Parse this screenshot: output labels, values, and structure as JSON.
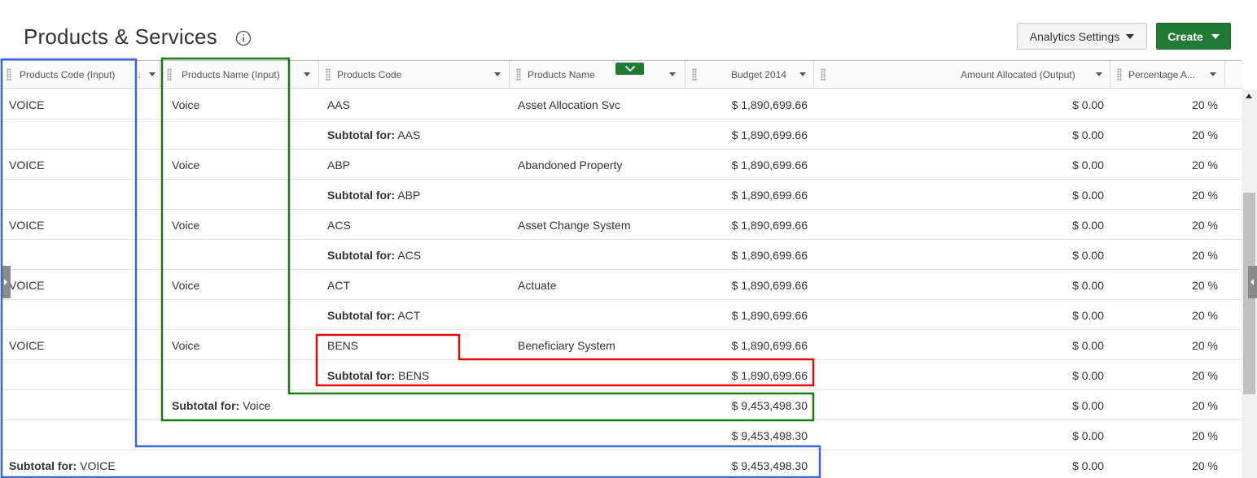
{
  "page": {
    "title": "Products & Services",
    "analytics_label": "Analytics Settings",
    "create_label": "Create"
  },
  "columns": [
    {
      "label": "Products Code (Input)"
    },
    {
      "label": "Products Name (Input)"
    },
    {
      "label": "Products Code"
    },
    {
      "label": "Products Name"
    },
    {
      "label": "Budget 2014"
    },
    {
      "label": "Amount Allocated (Output)"
    },
    {
      "label": "Percentage A..."
    }
  ],
  "subtotal_prefix": "Subtotal for:",
  "rows": [
    {
      "pci": "VOICE",
      "pni": "Voice",
      "pc": "AAS",
      "pn": "Asset Allocation Svc",
      "budget": "$ 1,890,699.66",
      "alloc": "$ 0.00",
      "pct": "20 %"
    },
    {
      "pci": "",
      "pni": "",
      "sub3": "AAS",
      "budget": "$ 1,890,699.66",
      "alloc": "$ 0.00",
      "pct": "20 %"
    },
    {
      "pci": "VOICE",
      "pni": "Voice",
      "pc": "ABP",
      "pn": "Abandoned Property",
      "budget": "$ 1,890,699.66",
      "alloc": "$ 0.00",
      "pct": "20 %"
    },
    {
      "pci": "",
      "pni": "",
      "sub3": "ABP",
      "budget": "$ 1,890,699.66",
      "alloc": "$ 0.00",
      "pct": "20 %"
    },
    {
      "pci": "VOICE",
      "pni": "Voice",
      "pc": "ACS",
      "pn": "Asset Change System",
      "budget": "$ 1,890,699.66",
      "alloc": "$ 0.00",
      "pct": "20 %"
    },
    {
      "pci": "",
      "pni": "",
      "sub3": "ACS",
      "budget": "$ 1,890,699.66",
      "alloc": "$ 0.00",
      "pct": "20 %"
    },
    {
      "pci": "VOICE",
      "pni": "Voice",
      "pc": "ACT",
      "pn": "Actuate",
      "budget": "$ 1,890,699.66",
      "alloc": "$ 0.00",
      "pct": "20 %"
    },
    {
      "pci": "",
      "pni": "",
      "sub3": "ACT",
      "budget": "$ 1,890,699.66",
      "alloc": "$ 0.00",
      "pct": "20 %"
    },
    {
      "pci": "VOICE",
      "pni": "Voice",
      "pc": "BENS",
      "pn": "Beneficiary System",
      "budget": "$ 1,890,699.66",
      "alloc": "$ 0.00",
      "pct": "20 %"
    },
    {
      "pci": "",
      "pni": "",
      "sub3": "BENS",
      "budget": "$ 1,890,699.66",
      "alloc": "$ 0.00",
      "pct": "20 %"
    },
    {
      "pci": "",
      "sub2": "Voice",
      "budget": "$ 9,453,498.30",
      "alloc": "$ 0.00",
      "pct": "20 %"
    },
    {
      "pci": "",
      "budget": "$ 9,453,498.30",
      "alloc": "$ 0.00",
      "pct": "20 %"
    },
    {
      "sub1": "VOICE",
      "budget": "$ 9,453,498.30",
      "alloc": "$ 0.00",
      "pct": "20 %"
    }
  ],
  "highlight_colors": {
    "blue": "#3a64d8",
    "green": "#147a14",
    "red": "#e00b0b"
  }
}
